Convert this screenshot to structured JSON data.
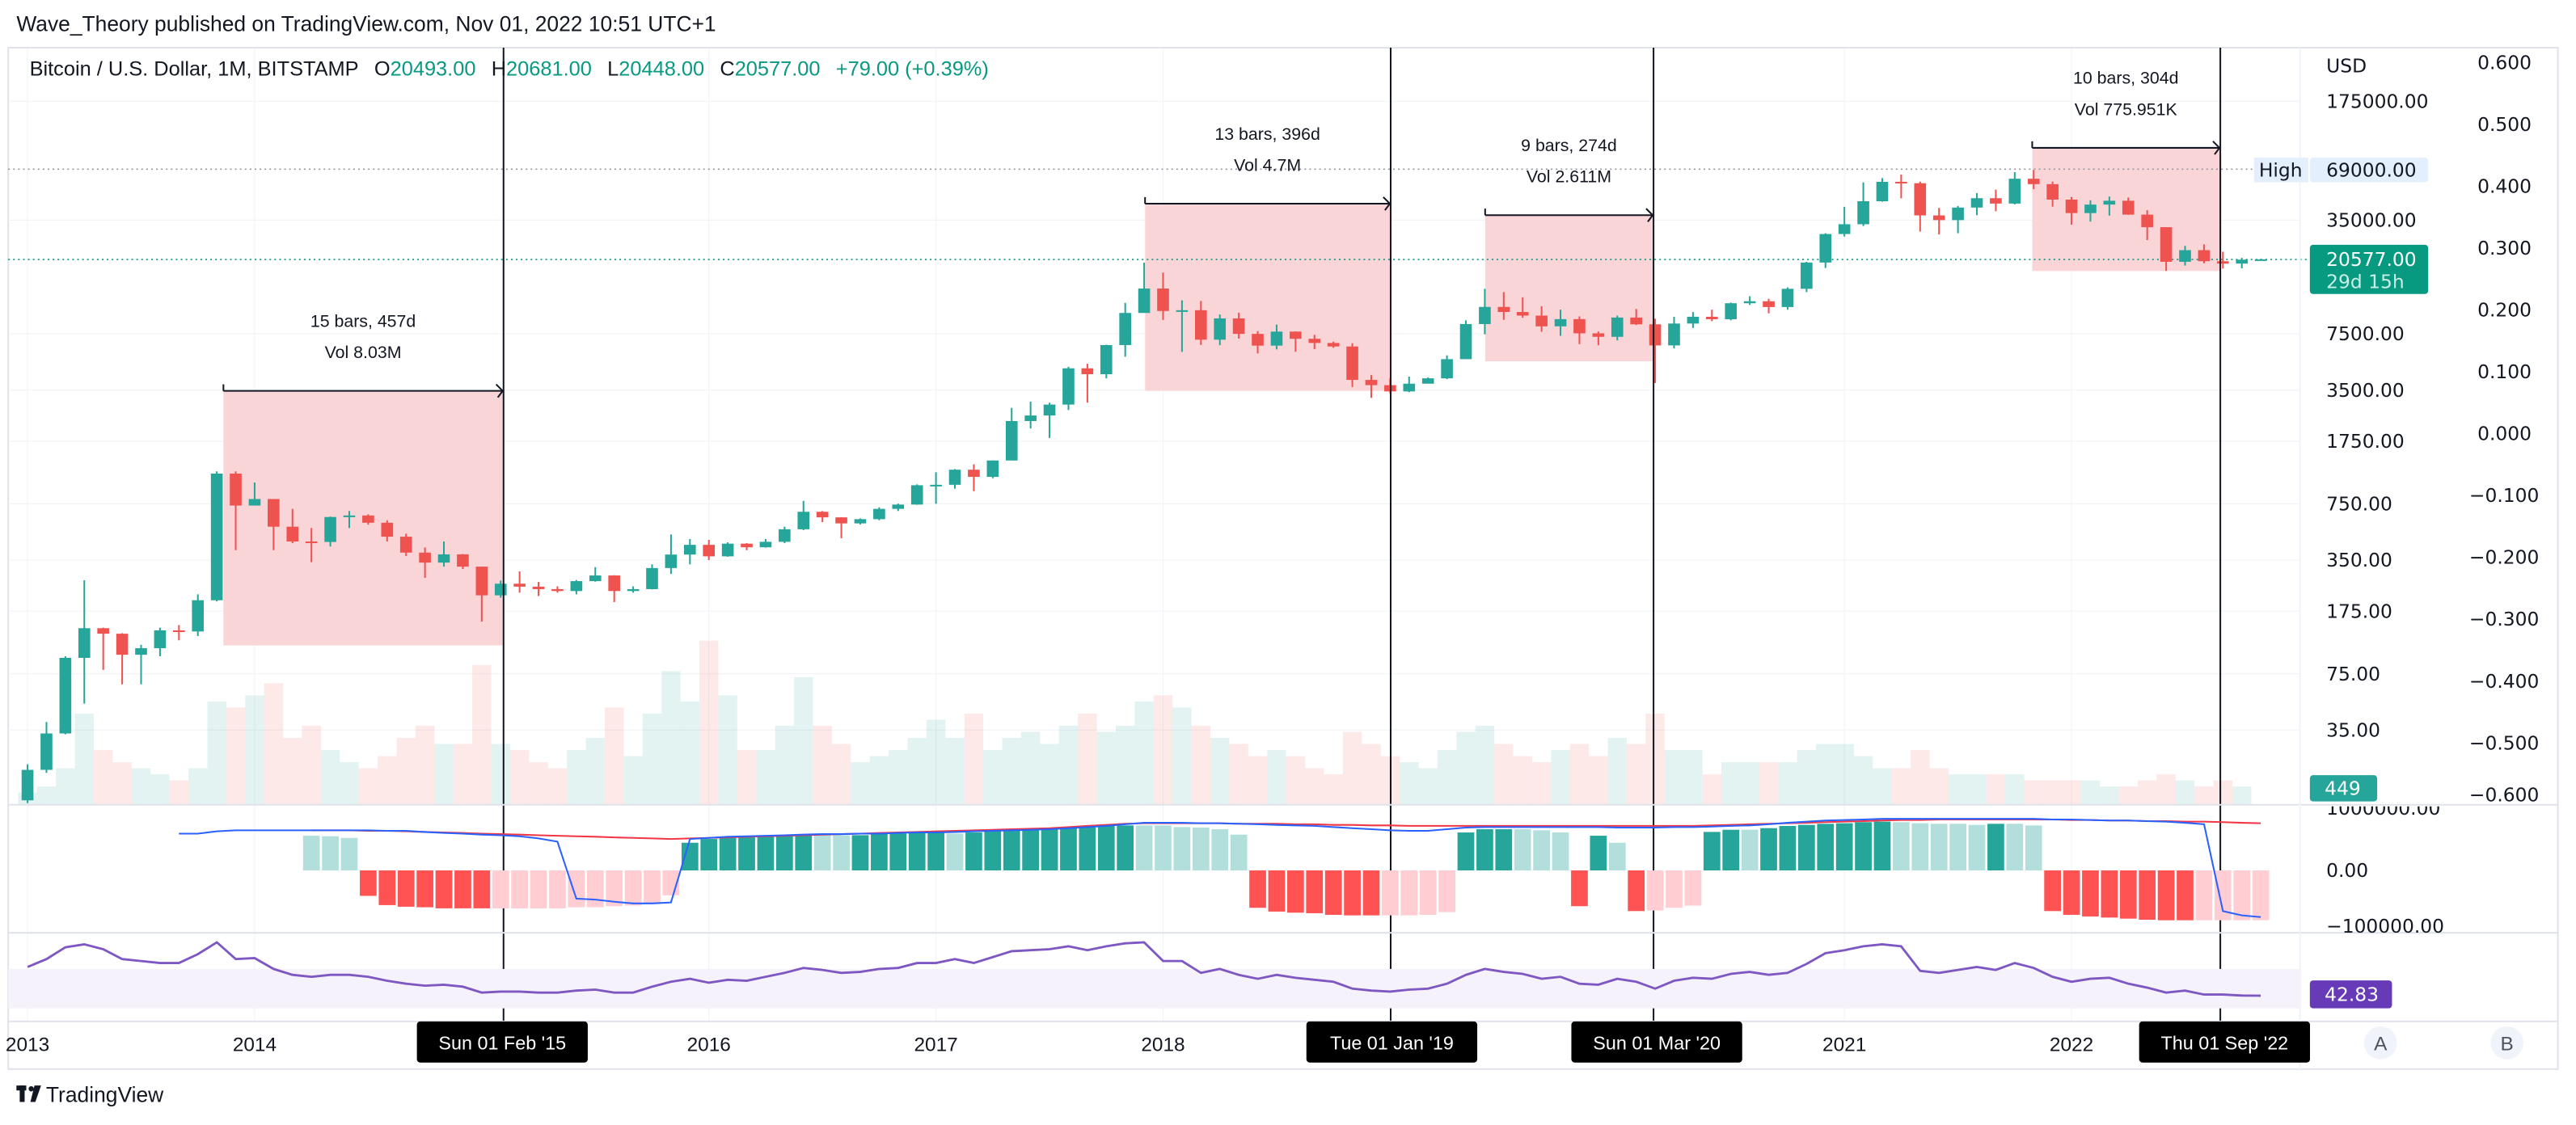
{
  "header": {
    "published": "Wave_Theory published on TradingView.com, Nov 01, 2022 10:51 UTC+1"
  },
  "legend": {
    "symbol": "Bitcoin / U.S. Dollar, 1M, BITSTAMP",
    "o_label": "O",
    "o": "20493.00",
    "h_label": "H",
    "h": "20681.00",
    "l_label": "L",
    "l": "20448.00",
    "c_label": "C",
    "c": "20577.00",
    "change": "+79.00 (+0.39%)"
  },
  "price_axis": {
    "currency": "USD",
    "ticks": [
      "175000.00",
      "35000.00",
      "7500.00",
      "3500.00",
      "1750.00",
      "750.00",
      "350.00",
      "175.00",
      "75.00",
      "35.00"
    ],
    "high_label": "High",
    "high_value": "69000.00",
    "last_price": "20577.00",
    "countdown": "29d 15h",
    "volume_badge": "449"
  },
  "secondary_axis": {
    "ticks": [
      "0.600",
      "0.500",
      "0.400",
      "0.300",
      "0.200",
      "0.100",
      "0.000",
      "−0.100",
      "−0.200",
      "−0.300",
      "−0.400",
      "−0.500",
      "−0.600"
    ]
  },
  "oscillator_axis": {
    "ticks": [
      "1000000.00",
      "0.00",
      "−100000.00"
    ]
  },
  "rsi_axis": {
    "value": "42.83"
  },
  "time_axis": {
    "years": [
      "2013",
      "2014",
      "2016",
      "2017",
      "2018",
      "2021",
      "2022"
    ],
    "markers": [
      "Sun 01 Feb '15",
      "Tue 01 Jan '19",
      "Sun 01 Mar '20",
      "Thu 01 Sep '22"
    ]
  },
  "measures": [
    {
      "bars": "15 bars, 457d",
      "vol": "Vol 8.03M"
    },
    {
      "bars": "13 bars, 396d",
      "vol": "Vol 4.7M"
    },
    {
      "bars": "9 bars, 274d",
      "vol": "Vol 2.611M"
    },
    {
      "bars": "10 bars, 304d",
      "vol": "Vol 775.951K"
    }
  ],
  "scale_buttons": {
    "a": "A",
    "b": "B"
  },
  "footer": {
    "brand": "TradingView"
  },
  "colors": {
    "up": "#26a69a",
    "down": "#ef5350",
    "last_price": "#089981",
    "volume_badge": "#26a69a",
    "rsi": "#673ab7",
    "hist_up_strong": "#26a69a",
    "hist_up_weak": "#b2dfdb",
    "hist_down_strong": "#ff5252",
    "hist_down_weak": "#ffcdd2",
    "line_a": "#2962ff",
    "line_b": "#f23645",
    "measure_fill": "#fad5d8",
    "high_badge": "#e3effd"
  },
  "chart_data": {
    "type": "candlestick",
    "interval": "1M",
    "x_start": "2013-01",
    "scale": "log",
    "open": [
      13.5,
      20.4,
      33.4,
      93,
      139,
      129,
      97,
      106,
      135,
      133,
      203,
      1129,
      732,
      800,
      550,
      450,
      447,
      627,
      640,
      580,
      480,
      387,
      338,
      378,
      320,
      217,
      254,
      244,
      236,
      230,
      263,
      284,
      230,
      236,
      314,
      377,
      430,
      368,
      437,
      416,
      448,
      531,
      673,
      624,
      575,
      609,
      700,
      742,
      964,
      970,
      1190,
      1080,
      1348,
      2300,
      2480,
      2875,
      4700,
      4340,
      6440,
      9950,
      13850,
      10221,
      10326,
      6925,
      9240,
      7494,
      6391,
      7729,
      7011,
      6626,
      6317,
      4017,
      3742,
      3437,
      3816,
      4103,
      5320,
      8560,
      10800,
      10080,
      9600,
      8300,
      9150,
      7550,
      7200,
      9350,
      8530,
      6410,
      8620,
      9450,
      9140,
      11350,
      11660,
      10780,
      13800,
      19700,
      28990,
      33100,
      45200,
      58800,
      57700,
      37300,
      35000,
      41500,
      47100,
      43800,
      61300,
      57000,
      46200,
      38500,
      43200,
      45500,
      37700,
      31800,
      19900,
      23300,
      20050,
      19420,
      20493
    ],
    "high": [
      22,
      39,
      95,
      266,
      140,
      130,
      111,
      140,
      145,
      220,
      1163,
      1163,
      1000,
      800,
      700,
      540,
      630,
      680,
      650,
      600,
      500,
      415,
      450,
      380,
      320,
      265,
      300,
      260,
      245,
      267,
      318,
      285,
      245,
      330,
      495,
      465,
      460,
      445,
      440,
      465,
      550,
      780,
      680,
      625,
      615,
      715,
      752,
      975,
      1150,
      1200,
      1280,
      1350,
      2750,
      2990,
      2950,
      4800,
      5000,
      6470,
      11400,
      19666,
      17200,
      11800,
      11700,
      9750,
      9990,
      7780,
      8500,
      7750,
      7400,
      6750,
      6600,
      4300,
      4100,
      4200,
      4150,
      5600,
      9000,
      13800,
      13200,
      12300,
      10900,
      10400,
      9500,
      7750,
      9600,
      10500,
      9200,
      9450,
      10070,
      10400,
      11450,
      12480,
      12060,
      14070,
      19900,
      29300,
      41900,
      58300,
      61800,
      64900,
      59000,
      41300,
      42400,
      50500,
      52900,
      67000,
      69000,
      59000,
      47900,
      45800,
      48200,
      47500,
      40000,
      31800,
      24700,
      25200,
      22800,
      20990,
      20681
    ],
    "low": [
      13,
      19.6,
      33,
      50,
      79,
      65,
      65,
      95,
      118,
      125,
      200,
      400,
      740,
      400,
      440,
      340,
      420,
      540,
      565,
      450,
      370,
      275,
      320,
      310,
      152,
      210,
      225,
      215,
      225,
      220,
      261,
      198,
      225,
      235,
      290,
      330,
      350,
      366,
      400,
      414,
      440,
      525,
      585,
      470,
      567,
      600,
      680,
      740,
      750,
      920,
      890,
      1060,
      1350,
      2080,
      1830,
      2670,
      2950,
      4100,
      5500,
      10200,
      9050,
      5870,
      6450,
      6430,
      7030,
      5750,
      6070,
      5880,
      6100,
      6200,
      3650,
      3150,
      3350,
      3400,
      3850,
      4060,
      5330,
      7450,
      9070,
      9320,
      7710,
      7300,
      6520,
      6430,
      6860,
      8450,
      3850,
      6150,
      8120,
      8900,
      9000,
      11100,
      9900,
      10400,
      13200,
      18300,
      28000,
      32300,
      44900,
      47000,
      30000,
      28800,
      29300,
      37400,
      39500,
      43300,
      53200,
      42000,
      32900,
      34300,
      37200,
      37600,
      26700,
      17600,
      18900,
      19500,
      18150,
      18200,
      20448
    ],
    "close": [
      20.4,
      33.4,
      93,
      139,
      129,
      97,
      106,
      135,
      133,
      203,
      1129,
      732,
      800,
      550,
      450,
      447,
      627,
      640,
      580,
      480,
      387,
      338,
      378,
      320,
      217,
      254,
      244,
      236,
      230,
      263,
      284,
      230,
      236,
      314,
      377,
      430,
      368,
      437,
      416,
      448,
      531,
      673,
      624,
      575,
      609,
      700,
      742,
      964,
      970,
      1190,
      1080,
      1348,
      2300,
      2480,
      2875,
      4700,
      4340,
      6440,
      9950,
      13850,
      10221,
      10326,
      6925,
      9240,
      7494,
      6391,
      7729,
      7011,
      6626,
      6317,
      4017,
      3742,
      3437,
      3816,
      4103,
      5320,
      8560,
      10800,
      10080,
      9600,
      8300,
      9150,
      7550,
      7200,
      9350,
      8530,
      6410,
      8620,
      9450,
      9140,
      11350,
      11660,
      10780,
      13800,
      19700,
      28990,
      33100,
      45200,
      58800,
      57700,
      37300,
      35000,
      41500,
      47100,
      43800,
      61300,
      57000,
      46200,
      38500,
      43200,
      45500,
      37700,
      31800,
      19900,
      23300,
      20050,
      19420,
      20493,
      20577
    ],
    "volume": [
      200000,
      300000,
      600000,
      1500000,
      900000,
      700000,
      600000,
      500000,
      400000,
      600000,
      1700000,
      1600000,
      1800000,
      2000000,
      1100000,
      1300000,
      900000,
      700000,
      600000,
      800000,
      1100000,
      1300000,
      1000000,
      1000000,
      2300000,
      1000000,
      900000,
      700000,
      600000,
      900000,
      1100000,
      1600000,
      800000,
      1500000,
      2200000,
      1700000,
      2700000,
      1800000,
      900000,
      900000,
      1300000,
      2100000,
      1300000,
      1000000,
      700000,
      800000,
      900000,
      1100000,
      1400000,
      1100000,
      1500000,
      900000,
      1100000,
      1200000,
      1000000,
      1300000,
      1500000,
      1200000,
      1300000,
      1700000,
      1800000,
      1600000,
      1300000,
      1100000,
      1000000,
      800000,
      900000,
      800000,
      600000,
      500000,
      1200000,
      1000000,
      800000,
      700000,
      600000,
      900000,
      1200000,
      1300000,
      1000000,
      800000,
      700000,
      900000,
      1000000,
      800000,
      1100000,
      1000000,
      1500000,
      900000,
      900000,
      500000,
      700000,
      700000,
      700000,
      700000,
      900000,
      1000000,
      1000000,
      800000,
      600000,
      600000,
      900000,
      600000,
      500000,
      500000,
      500000,
      500000,
      400000,
      400000,
      400000,
      400000,
      300000,
      300000,
      400000,
      500000,
      400000,
      300000,
      400000,
      300000,
      449
    ],
    "oscillator": {
      "histogram": [
        null,
        null,
        null,
        null,
        null,
        null,
        null,
        null,
        null,
        null,
        null,
        null,
        null,
        null,
        null,
        64000,
        63000,
        60000,
        -47000,
        -64000,
        -67000,
        -68000,
        -70000,
        -70000,
        -70000,
        -70000,
        -70000,
        -70000,
        -70000,
        -68000,
        -68000,
        -66000,
        -65000,
        -62000,
        -46000,
        51000,
        58000,
        60000,
        61000,
        63000,
        64000,
        65000,
        65000,
        65000,
        65000,
        68000,
        68000,
        70000,
        70000,
        68000,
        70000,
        74000,
        76000,
        77000,
        78000,
        79000,
        81000,
        83000,
        83000,
        83000,
        83000,
        80000,
        79000,
        76000,
        66000,
        -69000,
        -76000,
        -78000,
        -79000,
        -82000,
        -83000,
        -83000,
        -83000,
        -83000,
        -82000,
        -77000,
        70000,
        76000,
        76000,
        76000,
        74000,
        70000,
        -66000,
        64000,
        51000,
        -75000,
        -74000,
        -69000,
        -65000,
        71000,
        75000,
        75000,
        78000,
        82000,
        84000,
        86000,
        87000,
        89000,
        90000,
        89000,
        87000,
        86000,
        86000,
        84000,
        86000,
        86000,
        83000,
        -75000,
        -82000,
        -85000,
        -87000,
        -89000,
        -91000,
        -92000,
        -92000,
        -92000,
        -92000,
        -92000,
        -92000
      ],
      "hist_colors": [
        "",
        "",
        "",
        "",
        "",
        "",
        "",
        "",
        "",
        "",
        "",
        "",
        "",
        "",
        "",
        "g",
        "g",
        "g",
        "R",
        "R",
        "R",
        "R",
        "R",
        "R",
        "R",
        "r",
        "r",
        "r",
        "r",
        "r",
        "r",
        "r",
        "r",
        "r",
        "r",
        "G",
        "G",
        "G",
        "G",
        "G",
        "G",
        "G",
        "g",
        "g",
        "G",
        "G",
        "G",
        "G",
        "G",
        "g",
        "G",
        "G",
        "G",
        "G",
        "G",
        "G",
        "G",
        "G",
        "G",
        "g",
        "g",
        "g",
        "g",
        "g",
        "g",
        "R",
        "R",
        "R",
        "R",
        "R",
        "R",
        "R",
        "r",
        "r",
        "r",
        "r",
        "G",
        "G",
        "G",
        "g",
        "g",
        "g",
        "R",
        "G",
        "g",
        "R",
        "r",
        "r",
        "r",
        "G",
        "G",
        "g",
        "G",
        "G",
        "G",
        "G",
        "G",
        "G",
        "G",
        "g",
        "g",
        "g",
        "g",
        "g",
        "G",
        "g",
        "g",
        "R",
        "R",
        "R",
        "R",
        "R",
        "R",
        "R",
        "R",
        "r",
        "r",
        "r",
        "r"
      ],
      "line_a": [
        null,
        null,
        null,
        null,
        null,
        null,
        null,
        null,
        68000,
        68000,
        72000,
        74000,
        74000,
        74000,
        74000,
        74000,
        74000,
        74000,
        74000,
        73000,
        73000,
        71000,
        69000,
        68000,
        66000,
        65000,
        63000,
        59000,
        53000,
        -52000,
        -54000,
        -58000,
        -61000,
        -61000,
        -59000,
        58000,
        60000,
        62000,
        63000,
        64000,
        65000,
        66000,
        67000,
        67000,
        68000,
        68000,
        69000,
        70000,
        70000,
        71000,
        72000,
        73000,
        74000,
        75000,
        76000,
        78000,
        80000,
        82000,
        85000,
        88000,
        88000,
        88000,
        87000,
        87000,
        86000,
        85000,
        84000,
        83000,
        82000,
        80000,
        78000,
        76000,
        74000,
        73000,
        73000,
        76000,
        79000,
        80000,
        80000,
        80000,
        80000,
        80000,
        80000,
        80000,
        79000,
        79000,
        79000,
        80000,
        80000,
        81000,
        82000,
        83000,
        85000,
        88000,
        90000,
        92000,
        93000,
        94000,
        95000,
        95000,
        95000,
        95000,
        95000,
        95000,
        95000,
        95000,
        95000,
        94000,
        94000,
        93000,
        92000,
        92000,
        91000,
        90000,
        88000,
        85000,
        -75000,
        -83000,
        -86000
      ],
      "line_b": [
        null,
        null,
        null,
        null,
        null,
        null,
        null,
        null,
        null,
        null,
        null,
        null,
        null,
        null,
        null,
        74000,
        74000,
        74000,
        73000,
        73000,
        72000,
        71000,
        70000,
        69000,
        68000,
        67000,
        66000,
        65000,
        64000,
        63000,
        62000,
        61000,
        60000,
        59000,
        58000,
        59000,
        60000,
        61000,
        62000,
        63000,
        64000,
        65000,
        66000,
        67000,
        68000,
        69000,
        70000,
        71000,
        72000,
        73000,
        74000,
        75000,
        76000,
        77000,
        78000,
        80000,
        82000,
        84000,
        86000,
        87000,
        87000,
        87000,
        87000,
        87000,
        86000,
        86000,
        86000,
        85000,
        85000,
        84000,
        84000,
        83000,
        83000,
        82000,
        82000,
        82000,
        82000,
        82000,
        82000,
        82000,
        82000,
        82000,
        82000,
        82000,
        82000,
        82000,
        82000,
        82000,
        82000,
        83000,
        84000,
        85000,
        86000,
        87000,
        88000,
        89000,
        90000,
        91000,
        92000,
        93000,
        93000,
        94000,
        94000,
        94000,
        94000,
        94000,
        94000,
        94000,
        93000,
        93000,
        92000,
        92000,
        91000,
        91000,
        90000,
        90000,
        89000,
        88000,
        87000
      ]
    },
    "rsi": [
      72,
      80,
      92,
      95,
      90,
      80,
      78,
      76,
      76,
      85,
      97,
      80,
      81,
      70,
      64,
      62,
      64,
      64,
      62,
      58,
      55,
      53,
      54,
      52,
      46,
      47,
      47,
      46,
      46,
      48,
      49,
      46,
      46,
      52,
      57,
      60,
      56,
      59,
      58,
      62,
      66,
      71,
      69,
      66,
      67,
      70,
      71,
      76,
      76,
      80,
      76,
      82,
      88,
      89,
      90,
      93,
      89,
      93,
      96,
      97,
      78,
      78,
      66,
      70,
      64,
      60,
      64,
      61,
      59,
      57,
      50,
      48,
      47,
      49,
      50,
      55,
      64,
      70,
      67,
      65,
      60,
      62,
      55,
      54,
      60,
      57,
      50,
      58,
      61,
      60,
      65,
      67,
      64,
      66,
      75,
      86,
      89,
      93,
      95,
      93,
      68,
      66,
      69,
      72,
      69,
      76,
      71,
      62,
      57,
      60,
      61,
      55,
      51,
      46,
      48,
      44,
      44,
      43,
      42.83
    ]
  }
}
